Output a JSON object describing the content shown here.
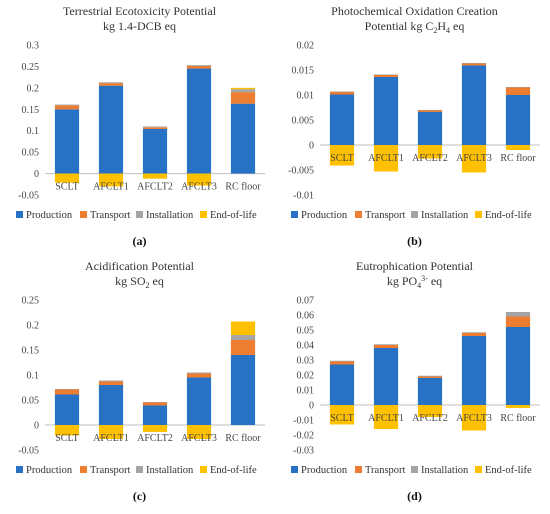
{
  "legend_labels": [
    "Production",
    "Transport",
    "Installation",
    "End-of-life"
  ],
  "colors": {
    "Production": "#2872C6",
    "Transport": "#ED7D31",
    "Installation": "#A5A5A5",
    "End-of-life": "#FFC000",
    "axis": "#BFBFBF",
    "grid": "#D9D9D9"
  },
  "chart_data": [
    {
      "type": "bar",
      "stacked": true,
      "panel_label": "(a)",
      "title_lines": [
        "Terrestrial Ecotoxicity Potential",
        "kg 1.4-DCB eq"
      ],
      "categories": [
        "SCLT",
        "AFCLT1",
        "AFCLT2",
        "AFCLT3",
        "RC floor"
      ],
      "ylim": [
        -0.05,
        0.3
      ],
      "yticks": [
        -0.05,
        0,
        0.05,
        0.1,
        0.15,
        0.2,
        0.25,
        0.3
      ],
      "ytick_labels": [
        "-0.05",
        "0",
        "0.05",
        "0.1",
        "0.15",
        "0.2",
        "0.25",
        "0.3"
      ],
      "grid": false,
      "legend_position": "bottom",
      "series": [
        {
          "name": "Production",
          "values": [
            0.15,
            0.205,
            0.104,
            0.245,
            0.163
          ]
        },
        {
          "name": "Transport",
          "values": [
            0.009,
            0.006,
            0.004,
            0.006,
            0.027
          ]
        },
        {
          "name": "Installation",
          "values": [
            0.002,
            0.002,
            0.002,
            0.002,
            0.007
          ]
        },
        {
          "name": "End-of-life",
          "values": [
            -0.021,
            -0.03,
            -0.012,
            -0.028,
            0.003
          ]
        }
      ]
    },
    {
      "type": "bar",
      "stacked": true,
      "panel_label": "(b)",
      "title_lines": [
        "Photochemical Oxidation Creation",
        "Potential  kg C2H4 eq"
      ],
      "categories": [
        "SCLT",
        "AFCLT1",
        "AFCLT2",
        "AFCLT3",
        "RC floor"
      ],
      "ylim": [
        -0.01,
        0.02
      ],
      "yticks": [
        -0.01,
        -0.005,
        0,
        0.005,
        0.01,
        0.015,
        0.02
      ],
      "ytick_labels": [
        "-0.01",
        "-0.005",
        "0",
        "0.005",
        "0.01",
        "0.015",
        "0.02"
      ],
      "grid": false,
      "legend_position": "bottom",
      "series": [
        {
          "name": "Production",
          "values": [
            0.0101,
            0.0136,
            0.0066,
            0.0159,
            0.01
          ]
        },
        {
          "name": "Transport",
          "values": [
            0.0005,
            0.0004,
            0.0003,
            0.0004,
            0.0015
          ]
        },
        {
          "name": "Installation",
          "values": [
            0.0001,
            0.0001,
            0.0001,
            0.0001,
            0.0001
          ]
        },
        {
          "name": "End-of-life",
          "values": [
            -0.0041,
            -0.0053,
            -0.0027,
            -0.0055,
            -0.001
          ]
        }
      ]
    },
    {
      "type": "bar",
      "stacked": true,
      "panel_label": "(c)",
      "title_lines": [
        "Acidification Potential",
        "kg SO2 eq"
      ],
      "categories": [
        "SCLT",
        "AFCLT1",
        "AFCLT2",
        "AFCLT3",
        "RC floor"
      ],
      "ylim": [
        -0.05,
        0.25
      ],
      "yticks": [
        -0.05,
        0,
        0.05,
        0.1,
        0.15,
        0.2,
        0.25
      ],
      "ytick_labels": [
        "-0.05",
        "0",
        "0.05",
        "0.1",
        "0.15",
        "0.2",
        "0.25"
      ],
      "grid": false,
      "legend_position": "bottom",
      "series": [
        {
          "name": "Production",
          "values": [
            0.061,
            0.08,
            0.039,
            0.095,
            0.14
          ]
        },
        {
          "name": "Transport",
          "values": [
            0.01,
            0.007,
            0.006,
            0.008,
            0.03
          ]
        },
        {
          "name": "Installation",
          "values": [
            0.001,
            0.002,
            0.001,
            0.002,
            0.01
          ]
        },
        {
          "name": "End-of-life",
          "values": [
            -0.021,
            -0.028,
            -0.014,
            -0.028,
            0.027
          ]
        }
      ]
    },
    {
      "type": "bar",
      "stacked": true,
      "panel_label": "(d)",
      "title_lines": [
        "Eutrophication Potential",
        "kg PO43- eq"
      ],
      "categories": [
        "SCLT",
        "AFCLT1",
        "AFCLT2",
        "AFCLT3",
        "RC floor"
      ],
      "ylim": [
        -0.03,
        0.07
      ],
      "yticks": [
        -0.03,
        -0.02,
        -0.01,
        0,
        0.01,
        0.02,
        0.03,
        0.04,
        0.05,
        0.06,
        0.07
      ],
      "ytick_labels": [
        "-0.03",
        "-0.02",
        "-0.01",
        "0",
        "0.01",
        "0.02",
        "0.03",
        "0.04",
        "0.05",
        "0.06",
        "0.07"
      ],
      "grid": false,
      "legend_position": "bottom",
      "series": [
        {
          "name": "Production",
          "values": [
            0.027,
            0.038,
            0.018,
            0.046,
            0.052
          ]
        },
        {
          "name": "Transport",
          "values": [
            0.002,
            0.002,
            0.001,
            0.002,
            0.007
          ]
        },
        {
          "name": "Installation",
          "values": [
            0.0005,
            0.0005,
            0.0005,
            0.0005,
            0.003
          ]
        },
        {
          "name": "End-of-life",
          "values": [
            -0.013,
            -0.016,
            -0.008,
            -0.017,
            -0.002
          ]
        }
      ]
    }
  ]
}
